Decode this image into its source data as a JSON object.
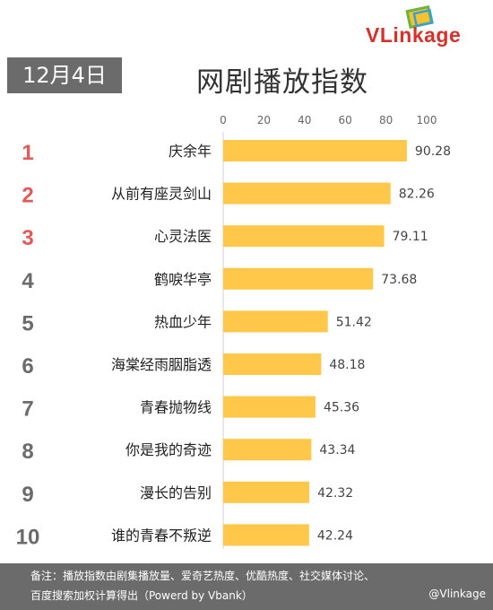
{
  "brand": {
    "logo_text": "VLinkage"
  },
  "header": {
    "date": "12月4日",
    "title": "网剧播放指数"
  },
  "chart_data": {
    "type": "bar",
    "orientation": "horizontal",
    "title": "网剧播放指数",
    "ranks": [
      "1",
      "2",
      "3",
      "4",
      "5",
      "6",
      "7",
      "8",
      "9",
      "10"
    ],
    "categories": [
      "庆余年",
      "从前有座灵剑山",
      "心灵法医",
      "鹤唳华亭",
      "热血少年",
      "海棠经雨胭脂透",
      "青春抛物线",
      "你是我的奇迹",
      "漫长的告别",
      "谁的青春不叛逆"
    ],
    "values": [
      90.28,
      82.26,
      79.11,
      73.68,
      51.42,
      48.18,
      45.36,
      43.34,
      42.32,
      42.24
    ],
    "value_labels": [
      "90.28",
      "82.26",
      "79.11",
      "73.68",
      "51.42",
      "48.18",
      "45.36",
      "43.34",
      "42.32",
      "42.24"
    ],
    "xlim": [
      0,
      100
    ],
    "xticks": [
      "0",
      "20",
      "40",
      "60",
      "80",
      "100"
    ],
    "axis_position": "top",
    "grid": false,
    "colors": {
      "bar": "#ffc84a",
      "rank_top3": "#e05a5a",
      "rank_other": "#6b6b6b"
    }
  },
  "footer": {
    "note_line1": "备注：播放指数由剧集播放量、爱奇艺热度、优酷热度、社交媒体讨论、",
    "note_line2": "百度搜索加权计算得出（Powerd by Vbank）",
    "weibo": "@Vlinkage"
  }
}
